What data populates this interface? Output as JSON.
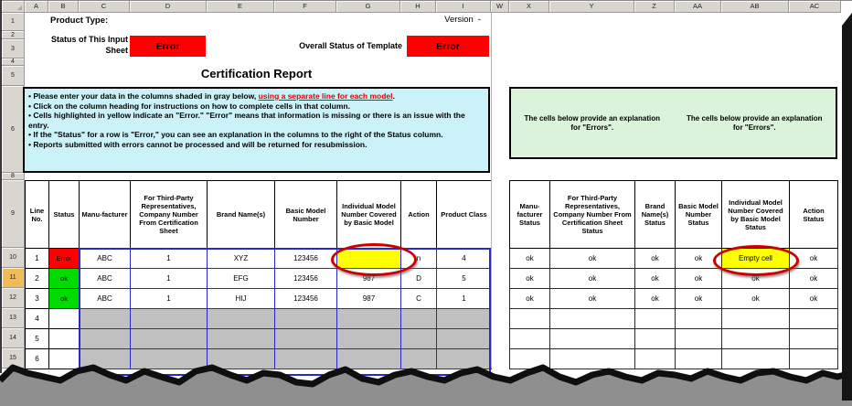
{
  "sheet": {
    "left_columns": [
      "A",
      "B",
      "C",
      "D",
      "E",
      "F",
      "G",
      "H",
      "I"
    ],
    "right_columns": [
      "W",
      "X",
      "Y",
      "Z",
      "AA",
      "AB",
      "AC"
    ],
    "row_labels": [
      "1",
      "2",
      "3",
      "4",
      "5",
      "6",
      "8",
      "9",
      "10",
      "11",
      "12",
      "13",
      "14",
      "15"
    ],
    "highlighted_row": "11"
  },
  "top": {
    "product_type_label": "Product Type:",
    "version_label": "Version",
    "version_value": "-",
    "input_sheet_status_label": "Status of This Input Sheet",
    "input_sheet_status": "Error",
    "overall_status_label": "Overall Status of Template",
    "overall_status": "Error",
    "title": "Certification Report"
  },
  "instructions": {
    "item1_pre": "• Please enter your data in the columns shaded in gray below, ",
    "item1_link": "using a separate line for each model",
    "item1_post": ".",
    "items": [
      "• Click on the column heading for instructions on how to complete cells in that column.",
      "• Cells highlighted in yellow indicate an \"Error.\"  \"Error\" means that information is missing or there is an issue with the entry.",
      "• If the \"Status\" for a row is \"Error,\" you can see an explanation in the columns to the right of the Status column.",
      "• Reports submitted with errors cannot be processed and will be returned for resubmission."
    ]
  },
  "explanation_box": {
    "left_text": "The cells below provide an explanation for \"Errors\".",
    "right_text": "The cells below provide an explanation for \"Errors\"."
  },
  "left_table": {
    "headers": [
      "Line No.",
      "Status",
      "Manu-facturer",
      "For Third-Party Representatives, Company Number From Certification Sheet",
      "Brand Name(s)",
      "Basic Model Number",
      "Individual Model Number Covered by Basic Model",
      "Action",
      "Product Class"
    ],
    "rows": [
      {
        "line": "1",
        "status": "Error",
        "cells": [
          "ABC",
          "1",
          "XYZ",
          "123456",
          "",
          "n",
          "4"
        ],
        "yellow_cell": 4
      },
      {
        "line": "2",
        "status": "ok",
        "cells": [
          "ABC",
          "1",
          "EFG",
          "123456",
          "987",
          "D",
          "5"
        ],
        "yellow_cell": -1
      },
      {
        "line": "3",
        "status": "ok",
        "cells": [
          "ABC",
          "1",
          "HIJ",
          "123456",
          "987",
          "C",
          "1"
        ],
        "yellow_cell": -1
      },
      {
        "line": "4",
        "status": "",
        "cells": [
          "",
          "",
          "",
          "",
          "",
          "",
          ""
        ],
        "yellow_cell": -1
      },
      {
        "line": "5",
        "status": "",
        "cells": [
          "",
          "",
          "",
          "",
          "",
          "",
          ""
        ],
        "yellow_cell": -1
      },
      {
        "line": "6",
        "status": "",
        "cells": [
          "",
          "",
          "",
          "",
          "",
          "",
          ""
        ],
        "yellow_cell": -1
      }
    ]
  },
  "right_table": {
    "headers": [
      "Manu-facturer Status",
      "For Third-Party Representatives, Company Number From Certification Sheet Status",
      "Brand Name(s) Status",
      "Basic Model Number Status",
      "Individual Model Number Covered by Basic Model Status",
      "Action Status"
    ],
    "rows": [
      [
        "ok",
        "ok",
        "ok",
        "ok",
        "Empty cell",
        "ok"
      ],
      [
        "ok",
        "ok",
        "ok",
        "ok",
        "ok",
        "ok"
      ],
      [
        "ok",
        "ok",
        "ok",
        "ok",
        "ok",
        "ok"
      ],
      [
        "",
        "",
        "",
        "",
        "",
        ""
      ],
      [
        "",
        "",
        "",
        "",
        "",
        ""
      ],
      [
        "",
        "",
        "",
        "",
        "",
        ""
      ]
    ],
    "highlight": {
      "row": 0,
      "col": 4
    }
  },
  "colors": {
    "error_red": "#FF0000",
    "ok_green": "#00DB00",
    "highlight_yellow": "#FFFF00",
    "instructions_bg": "#CBF2F8",
    "explanation_bg": "#DBF3DB",
    "entry_gray": "#C0C0C0",
    "grid_blue": "#2929C8",
    "annotation_oval_red": "#CC0000",
    "selected_row_tab": "#F2BB58"
  }
}
